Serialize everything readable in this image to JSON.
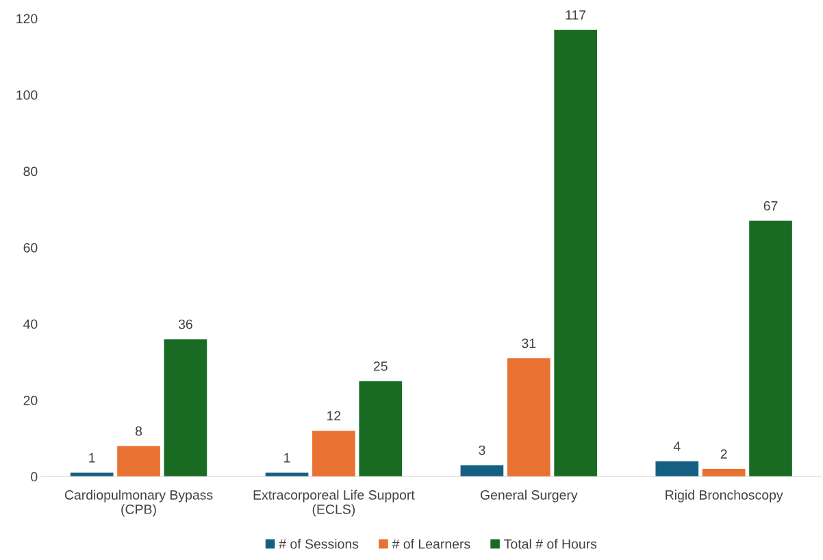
{
  "chart_data": {
    "type": "bar",
    "categories": [
      "Cardiopulmonary Bypass\n(CPB)",
      "Extracorporeal Life Support\n(ECLS)",
      "General Surgery",
      "Rigid Bronchoscopy"
    ],
    "series": [
      {
        "name": "# of Sessions",
        "color": "#156082",
        "values": [
          1,
          1,
          3,
          4
        ]
      },
      {
        "name": "# of Learners",
        "color": "#e97132",
        "values": [
          8,
          12,
          31,
          2
        ]
      },
      {
        "name": "Total # of Hours",
        "color": "#196b24",
        "values": [
          36,
          25,
          117,
          67
        ]
      }
    ],
    "ylim": [
      0,
      120
    ],
    "yticks": [
      0,
      20,
      40,
      60,
      80,
      100,
      120
    ],
    "grid": false,
    "legend": "bottom",
    "data_labels": true
  }
}
